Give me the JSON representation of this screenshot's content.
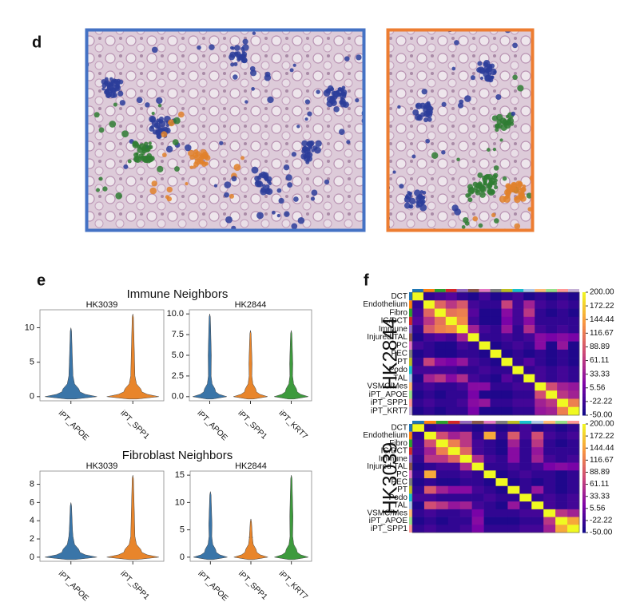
{
  "panel_labels": [
    "d",
    "e",
    "f"
  ],
  "chart_data": [
    {
      "type": "violin",
      "suptitle": "Immune Neighbors",
      "title": "HK3039",
      "categories": [
        "iPT_APOE",
        "iPT_SPP1"
      ],
      "colors": [
        "#3a75a8",
        "#e8852b"
      ],
      "maxima": [
        10,
        12
      ],
      "ylim": [
        -0.6,
        12.6
      ],
      "yticks": [
        0,
        5,
        10
      ]
    },
    {
      "type": "violin",
      "title": "HK2844",
      "categories": [
        "iPT_APOE",
        "iPT_SPP1",
        "iPT_KRT7"
      ],
      "colors": [
        "#3a75a8",
        "#e8852b",
        "#3d9a3d"
      ],
      "maxima": [
        10,
        8,
        8
      ],
      "ylim": [
        -0.5,
        10.5
      ],
      "yticks": [
        {
          "value": 0,
          "label": "0.0"
        },
        2.5,
        {
          "value": 5,
          "label": "5.0"
        },
        7.5,
        {
          "value": 10,
          "label": "10.0"
        }
      ]
    },
    {
      "type": "violin",
      "suptitle": "Fibroblast Neighbors",
      "title": "HK3039",
      "categories": [
        "iPT_APOE",
        "iPT_SPP1"
      ],
      "colors": [
        "#3a75a8",
        "#e8852b"
      ],
      "maxima": [
        6,
        9
      ],
      "ylim": [
        -0.45,
        9.45
      ],
      "yticks": [
        0,
        2,
        4,
        6,
        8
      ]
    },
    {
      "type": "violin",
      "title": "HK2844",
      "categories": [
        "iPT_APOE",
        "iPT_SPP1",
        "iPT_KRT7"
      ],
      "colors": [
        "#3a75a8",
        "#e8852b",
        "#3d9a3d"
      ],
      "maxima": [
        12,
        7,
        15
      ],
      "ylim": [
        -0.75,
        15.75
      ],
      "yticks": [
        0,
        5,
        10,
        15
      ]
    },
    {
      "type": "heatmap",
      "ylabel": "HK2844",
      "rows": [
        "DCT",
        "Endothelium",
        "Fibro",
        "IC/DCT",
        "Immune",
        "Injured TAL",
        "PC",
        "PEC",
        "PT",
        "Podo",
        "TAL",
        "VSMC/Mes",
        "iPT_APOE",
        "iPT_SPP1",
        "iPT_KRT7"
      ],
      "values": [
        [
          200,
          -30,
          -20,
          -10,
          -30,
          -40,
          -20,
          -40,
          -30,
          -20,
          -40,
          -30,
          -40,
          -30,
          -40
        ],
        [
          -30,
          200,
          100,
          60,
          90,
          -20,
          -30,
          -30,
          70,
          -20,
          40,
          -20,
          -30,
          -20,
          -30
        ],
        [
          -20,
          100,
          200,
          110,
          120,
          -10,
          -40,
          -40,
          20,
          -20,
          60,
          -30,
          -40,
          -30,
          -40
        ],
        [
          -10,
          60,
          110,
          200,
          130,
          -20,
          -40,
          -40,
          10,
          -20,
          20,
          -30,
          -30,
          -30,
          -30
        ],
        [
          -30,
          90,
          120,
          130,
          200,
          40,
          -20,
          -30,
          30,
          -30,
          50,
          -20,
          -30,
          -20,
          -30
        ],
        [
          -40,
          -20,
          -10,
          -20,
          40,
          200,
          -30,
          -30,
          -20,
          -30,
          -20,
          20,
          10,
          20,
          10
        ],
        [
          -20,
          -30,
          -40,
          -40,
          -20,
          -30,
          200,
          -40,
          -30,
          -20,
          -30,
          20,
          -40,
          30,
          -40
        ],
        [
          -40,
          -30,
          -40,
          -40,
          -30,
          -30,
          -40,
          200,
          -40,
          -30,
          -40,
          -30,
          -40,
          -30,
          -40
        ],
        [
          -30,
          70,
          20,
          10,
          30,
          -20,
          -30,
          -40,
          200,
          -30,
          -10,
          -30,
          -40,
          -30,
          -40
        ],
        [
          -20,
          -20,
          -20,
          -20,
          -30,
          -30,
          -20,
          -30,
          -30,
          200,
          -30,
          -20,
          -30,
          -20,
          -30
        ],
        [
          -40,
          40,
          60,
          20,
          50,
          -20,
          -30,
          -40,
          -10,
          -30,
          200,
          -20,
          -30,
          -20,
          -30
        ],
        [
          -30,
          -20,
          -30,
          -30,
          -20,
          20,
          20,
          -30,
          -30,
          -20,
          -20,
          200,
          80,
          40,
          30
        ],
        [
          -40,
          -30,
          -40,
          -30,
          -30,
          10,
          -40,
          -40,
          -40,
          -30,
          -30,
          80,
          200,
          60,
          40
        ],
        [
          -30,
          -20,
          -30,
          -30,
          -20,
          20,
          30,
          -30,
          -30,
          -20,
          -20,
          40,
          60,
          200,
          120
        ],
        [
          -40,
          -30,
          -40,
          -30,
          -30,
          10,
          -40,
          -40,
          -40,
          -30,
          -30,
          30,
          40,
          120,
          200
        ]
      ],
      "zlim": [
        -50,
        200
      ],
      "zticks": [
        {
          "value": 200,
          "label": "200.00"
        },
        172.22,
        144.44,
        116.67,
        88.89,
        61.11,
        33.33,
        5.56,
        -22.22,
        {
          "value": -50,
          "label": "-50.00"
        }
      ]
    },
    {
      "type": "heatmap",
      "ylabel": "HK3039",
      "rows": [
        "DCT",
        "Endothelium",
        "Fibro",
        "IC/DCT",
        "Immune",
        "Injured TAL",
        "PC",
        "PEC",
        "PT",
        "Podo",
        "TAL",
        "VSMC/Mes",
        "iPT_APOE",
        "iPT_SPP1"
      ],
      "values": [
        [
          200,
          -30,
          -20,
          -20,
          -30,
          -40,
          -30,
          -40,
          -30,
          -20,
          -40,
          -30,
          -40,
          -30
        ],
        [
          -30,
          200,
          80,
          40,
          60,
          -30,
          150,
          -30,
          90,
          -20,
          80,
          -20,
          -30,
          -20
        ],
        [
          -20,
          80,
          200,
          120,
          60,
          -20,
          -30,
          -40,
          40,
          -30,
          60,
          -30,
          -40,
          -30
        ],
        [
          -20,
          40,
          120,
          200,
          100,
          -20,
          -30,
          -40,
          20,
          -30,
          30,
          -30,
          -30,
          -30
        ],
        [
          -30,
          60,
          60,
          100,
          200,
          50,
          -20,
          -30,
          20,
          -30,
          40,
          -20,
          -30,
          -20
        ],
        [
          -40,
          -30,
          -20,
          -20,
          50,
          200,
          -30,
          -30,
          -20,
          -30,
          -20,
          10,
          20,
          10
        ],
        [
          -30,
          150,
          -30,
          -30,
          -20,
          -30,
          200,
          -40,
          -30,
          -20,
          -30,
          -30,
          -40,
          -30
        ],
        [
          -40,
          -30,
          -40,
          -40,
          -30,
          -30,
          -40,
          200,
          -40,
          -30,
          -40,
          -30,
          -40,
          -30
        ],
        [
          -30,
          90,
          40,
          20,
          20,
          -20,
          -30,
          -40,
          200,
          -30,
          30,
          -30,
          -40,
          -30
        ],
        [
          -20,
          -20,
          -30,
          -30,
          -30,
          -30,
          -20,
          -30,
          -30,
          200,
          -30,
          -20,
          -30,
          -20
        ],
        [
          -40,
          80,
          60,
          30,
          40,
          -20,
          -30,
          -40,
          30,
          -30,
          200,
          -20,
          -30,
          -20
        ],
        [
          -30,
          -20,
          -30,
          -30,
          -20,
          10,
          -30,
          -30,
          -30,
          -20,
          -20,
          200,
          60,
          40
        ],
        [
          -40,
          -30,
          -40,
          -30,
          -30,
          20,
          -40,
          -40,
          -40,
          -30,
          -30,
          60,
          200,
          150
        ],
        [
          -30,
          -20,
          -30,
          -30,
          -20,
          10,
          -30,
          -30,
          -30,
          -20,
          -20,
          40,
          150,
          200
        ]
      ],
      "zlim": [
        -50,
        200
      ],
      "zticks": [
        {
          "value": 200,
          "label": "200.00"
        },
        172.22,
        144.44,
        116.67,
        88.89,
        61.11,
        33.33,
        5.56,
        -22.22,
        {
          "value": -50,
          "label": "-50.00"
        }
      ]
    }
  ]
}
